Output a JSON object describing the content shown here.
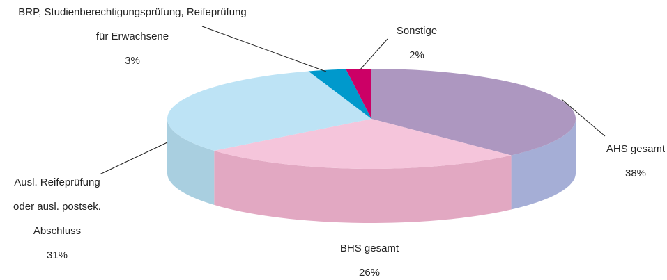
{
  "chart_data": {
    "type": "pie3d",
    "categories": [
      "AHS gesamt",
      "BHS gesamt",
      "Ausl. Reifeprüfung\noder ausl. postsek.\nAbschluss",
      "BRP, Studienberechtigungsprüfung, Reifeprüfung\nfür Erwachsene",
      "Sonstige"
    ],
    "values": [
      38,
      26,
      31,
      3,
      2
    ],
    "value_labels": [
      "38%",
      "26%",
      "31%",
      "3%",
      "2%"
    ],
    "colors": [
      "#ad97c0",
      "#f5c5db",
      "#bde3f5",
      "#0099cc",
      "#cc0066"
    ],
    "side_colors": [
      "#a5aed6",
      "#e2a8c2",
      "#a9cfe0",
      "#0088bb",
      "#b0005a"
    ]
  }
}
